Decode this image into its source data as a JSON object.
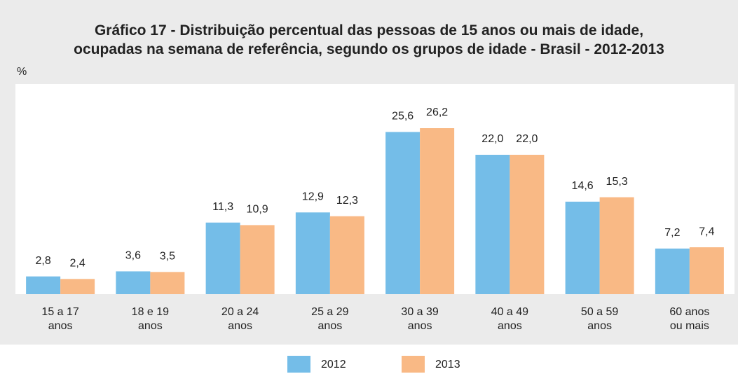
{
  "chart_data": {
    "type": "bar",
    "title": [
      "Gráfico 17 - Distribuição percentual das pessoas de 15 anos ou mais de idade,",
      "ocupadas na semana de referência, segundo os grupos de idade - Brasil - 2012-2013"
    ],
    "y_label": "%",
    "categories": [
      "15 a 17 anos",
      "18 e 19 anos",
      "20 a 24 anos",
      "25 a 29 anos",
      "30 a 39 anos",
      "40 a 49 anos",
      "50 a 59 anos",
      "60 anos ou mais"
    ],
    "series": [
      {
        "name": "2012",
        "color": "#74bde8",
        "values": [
          2.8,
          3.6,
          11.3,
          12.9,
          25.6,
          22.0,
          14.6,
          7.2
        ],
        "value_labels": [
          "2,8",
          "3,6",
          "11,3",
          "12,9",
          "25,6",
          "22,0",
          "14,6",
          "7,2"
        ]
      },
      {
        "name": "2013",
        "color": "#f9b985",
        "values": [
          2.4,
          3.5,
          10.9,
          12.3,
          26.2,
          22.0,
          15.3,
          7.4
        ],
        "value_labels": [
          "2,4",
          "3,5",
          "10,9",
          "12,3",
          "26,2",
          "22,0",
          "15,3",
          "7,4"
        ]
      }
    ]
  }
}
